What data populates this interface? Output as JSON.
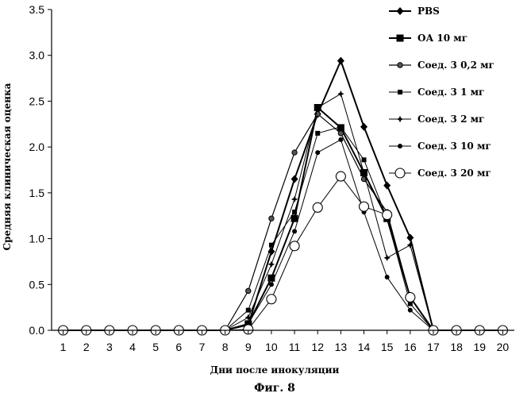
{
  "figure_caption": "Фиг. 8",
  "chart_data": {
    "type": "line",
    "title": "",
    "xlabel": "Дни после инокуляции",
    "ylabel": "Средняя клиническая оценка",
    "x": [
      1,
      2,
      3,
      4,
      5,
      6,
      7,
      8,
      9,
      10,
      11,
      12,
      13,
      14,
      15,
      16,
      17,
      18,
      19,
      20
    ],
    "ylim": [
      0,
      3.5
    ],
    "yticks": [
      "0.0",
      "0.5",
      "1.0",
      "1.5",
      "2.0",
      "2.5",
      "3.0",
      "3.5"
    ],
    "xticks": [
      "1",
      "2",
      "3",
      "4",
      "5",
      "6",
      "7",
      "8",
      "9",
      "10",
      "11",
      "12",
      "13",
      "14",
      "15",
      "16",
      "17",
      "18",
      "19",
      "20"
    ],
    "grid": false,
    "legend_position": "right",
    "series": [
      {
        "name": "PBS",
        "marker": "diamond",
        "stroke_color": "#000000",
        "values": [
          0,
          0,
          0,
          0,
          0,
          0,
          0,
          0,
          0.06,
          0.86,
          1.65,
          2.36,
          2.94,
          2.22,
          1.58,
          1.01,
          0,
          0,
          0,
          0
        ]
      },
      {
        "name": "ОА 10 мг",
        "marker": "square",
        "stroke_color": "#000000",
        "values": [
          0,
          0,
          0,
          0,
          0,
          0,
          0,
          0,
          0.07,
          0.57,
          1.22,
          2.43,
          2.21,
          1.72,
          1.22,
          0.36,
          0,
          0,
          0,
          0
        ]
      },
      {
        "name": "Соед. 3 0,2 мг",
        "marker": "circle-gray",
        "stroke_color": "#000000",
        "values": [
          0,
          0,
          0,
          0,
          0,
          0,
          0,
          0,
          0.43,
          1.22,
          1.94,
          2.36,
          2.15,
          1.65,
          1.29,
          0.36,
          0,
          0,
          0,
          0
        ]
      },
      {
        "name": "Соед. 3 1 мг",
        "marker": "small-square",
        "stroke_color": "#000000",
        "values": [
          0,
          0,
          0,
          0,
          0,
          0,
          0,
          0,
          0.22,
          0.93,
          1.29,
          2.15,
          2.22,
          1.86,
          1.22,
          0.29,
          0,
          0,
          0,
          0
        ]
      },
      {
        "name": "Соед. 3 2 мг",
        "marker": "star",
        "stroke_color": "#000000",
        "values": [
          0,
          0,
          0,
          0,
          0,
          0,
          0,
          0,
          0.14,
          0.72,
          1.43,
          2.43,
          2.58,
          1.72,
          0.79,
          0.93,
          0,
          0,
          0,
          0
        ]
      },
      {
        "name": "Соед. 3 10 мг",
        "marker": "circle",
        "stroke_color": "#000000",
        "values": [
          0,
          0,
          0,
          0,
          0,
          0,
          0,
          0,
          0.07,
          0.5,
          1.08,
          1.94,
          2.08,
          1.29,
          0.58,
          0.22,
          0,
          0,
          0,
          0
        ]
      },
      {
        "name": "Соед. 3 20 мг",
        "marker": "open-circle",
        "stroke_color": "#000000",
        "values": [
          0,
          0,
          0,
          0,
          0,
          0,
          0,
          0,
          0.01,
          0.34,
          0.92,
          1.34,
          1.68,
          1.35,
          1.26,
          0.36,
          0,
          0,
          0,
          0
        ]
      }
    ]
  }
}
